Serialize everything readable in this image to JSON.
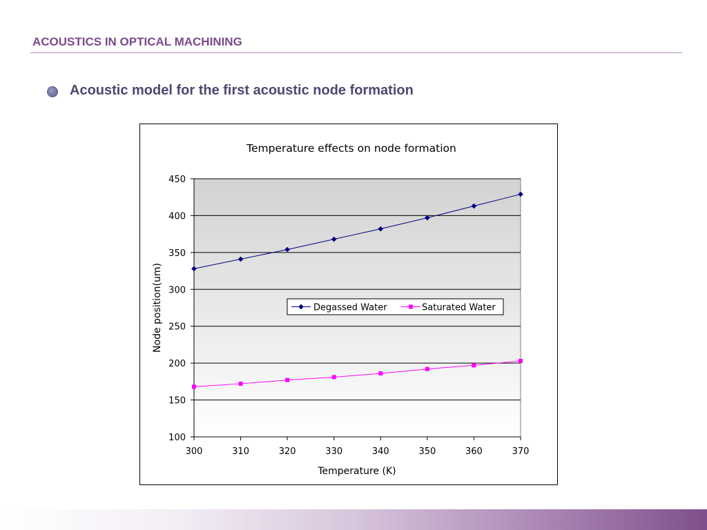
{
  "header": {
    "title": "ACOUSTICS IN OPTICAL MACHINING"
  },
  "bullet": {
    "text": "Acoustic model for the first acoustic node formation"
  },
  "colors": {
    "accent": "#7a4a8a",
    "degassed": "#000080",
    "saturated": "#ff00ff"
  },
  "chart_data": {
    "type": "line",
    "title": "Temperature effects on node formation",
    "xlabel": "Temperature (K)",
    "ylabel": "Node position(um)",
    "xlim": [
      300,
      370
    ],
    "ylim": [
      100,
      450
    ],
    "x_ticks": [
      300,
      310,
      320,
      330,
      340,
      350,
      360,
      370
    ],
    "y_ticks": [
      100,
      150,
      200,
      250,
      300,
      350,
      400,
      450
    ],
    "grid": true,
    "legend_position": "center-right",
    "x": [
      300,
      310,
      320,
      330,
      340,
      350,
      360,
      370
    ],
    "series": [
      {
        "name": "Degassed Water",
        "marker": "diamond",
        "color": "#000080",
        "values": [
          328,
          341,
          354,
          368,
          382,
          397,
          413,
          429
        ]
      },
      {
        "name": "Saturated Water",
        "marker": "square",
        "color": "#ff00ff",
        "values": [
          168,
          172,
          177,
          181,
          186,
          192,
          197,
          203
        ]
      }
    ]
  }
}
